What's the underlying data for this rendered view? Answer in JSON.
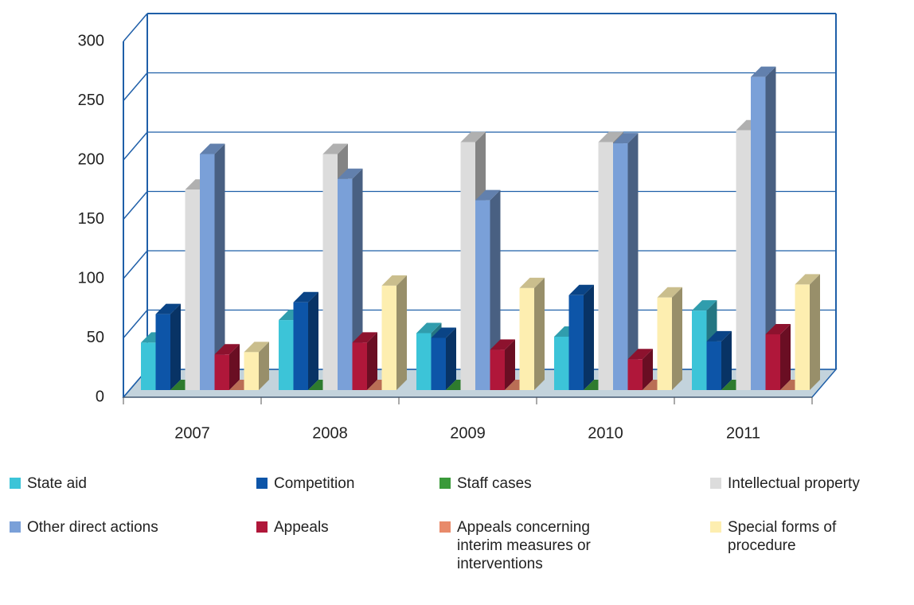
{
  "chart_data": {
    "type": "bar3d",
    "categories": [
      "2007",
      "2008",
      "2009",
      "2010",
      "2011"
    ],
    "series": [
      {
        "name": "State aid",
        "color": "#3cc4d8",
        "values": [
          40,
          59,
          48,
          45,
          67
        ]
      },
      {
        "name": "Competition",
        "color": "#0d55a8",
        "values": [
          64,
          74,
          44,
          80,
          41
        ]
      },
      {
        "name": "Staff cases",
        "color": "#3a9a3a",
        "values": [
          0,
          0,
          0,
          0,
          0
        ]
      },
      {
        "name": "Intellectual property",
        "color": "#dcdcdc",
        "values": [
          169,
          199,
          209,
          209,
          219
        ]
      },
      {
        "name": "Other direct actions",
        "color": "#7aa0d8",
        "values": [
          199,
          178,
          160,
          208,
          264
        ]
      },
      {
        "name": "Appeals",
        "color": "#b0173a",
        "values": [
          30,
          40,
          34,
          26,
          47
        ]
      },
      {
        "name": "Appeals concerning interim measures or interventions",
        "color": "#e88a6a",
        "values": [
          0,
          0,
          0,
          0,
          0
        ]
      },
      {
        "name": "Special forms of procedure",
        "color": "#fdeeb0",
        "values": [
          32,
          88,
          86,
          78,
          89
        ]
      }
    ],
    "ylim": [
      0,
      300
    ],
    "yticks": [
      0,
      50,
      100,
      150,
      200,
      250,
      300
    ],
    "grid": true,
    "legend": "bottom"
  }
}
